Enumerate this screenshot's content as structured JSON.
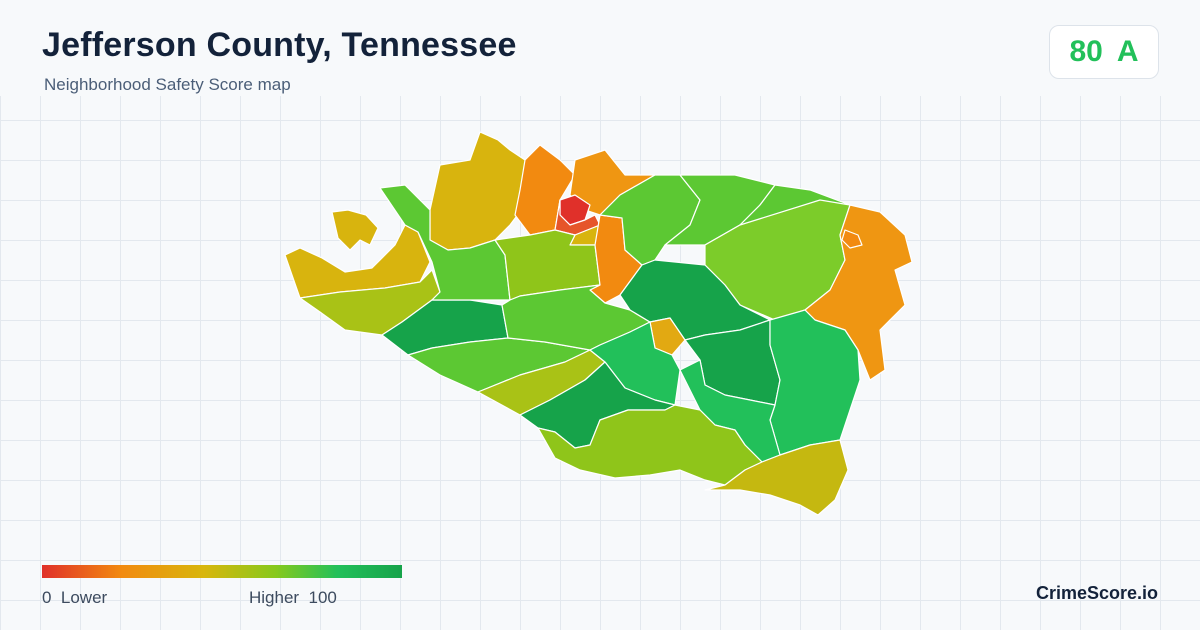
{
  "header": {
    "title": "Jefferson County, Tennessee",
    "subtitle": "Neighborhood Safety Score map"
  },
  "score": {
    "value": "80",
    "grade": "A",
    "color": "#22c05a"
  },
  "legend": {
    "low_label": "0  Lower",
    "high_label": "Higher  100",
    "gradient_colors": [
      "#e0302a",
      "#f28a10",
      "#d8b60c",
      "#86c91c",
      "#22c05a",
      "#16a34a"
    ]
  },
  "brand": "CrimeScore.io",
  "map": {
    "type": "choropleth",
    "region": "Jefferson County, Tennessee",
    "color_scale": "red (lower) to green (higher)"
  }
}
